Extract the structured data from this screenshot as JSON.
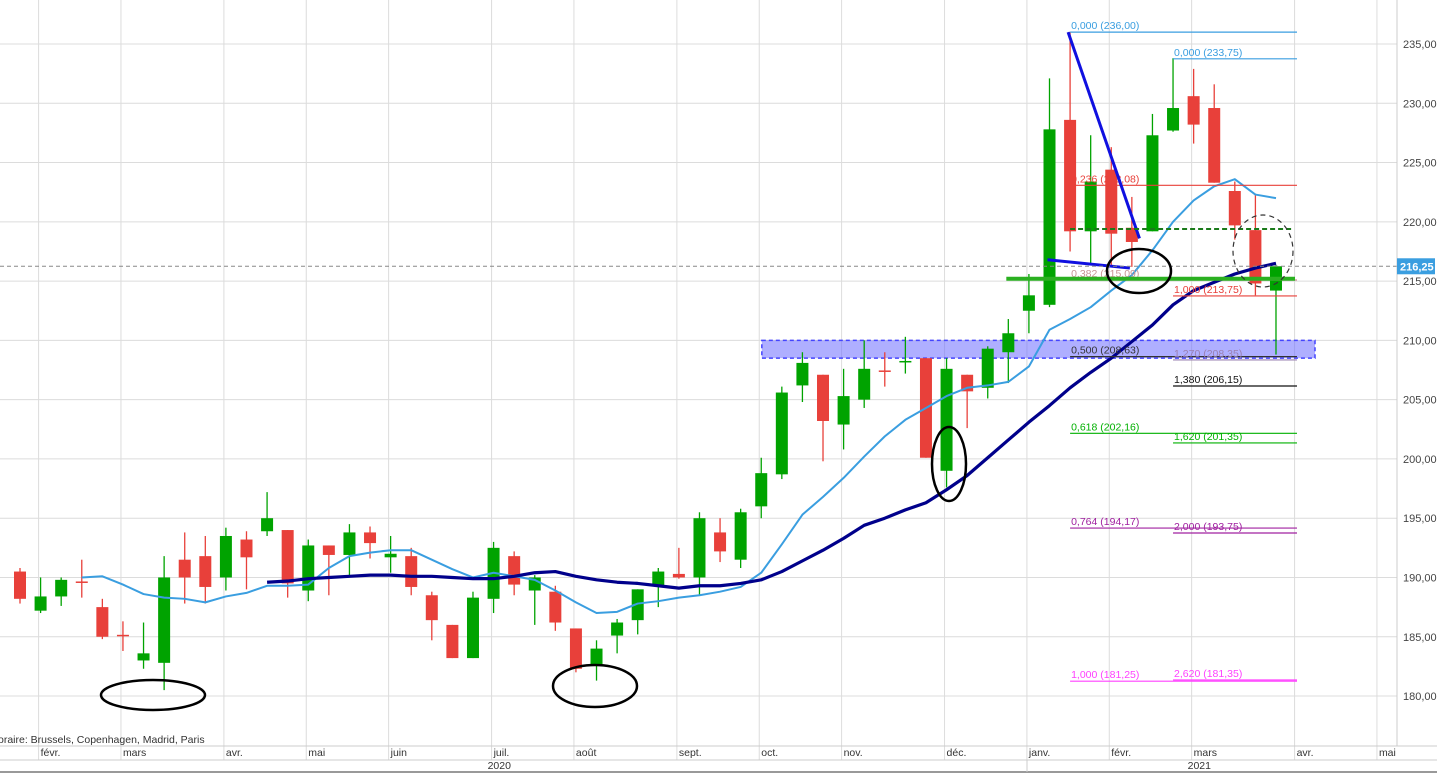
{
  "chart_data": {
    "type": "candlestick",
    "interval": "weekly",
    "ylim": [
      175,
      238
    ],
    "price_axis_ticks": [
      "235,00",
      "230,00",
      "225,00",
      "220,00",
      "215,00",
      "210,00",
      "205,00",
      "200,00",
      "195,00",
      "190,00",
      "185,00",
      "180,00"
    ],
    "price_axis_values": [
      235,
      230,
      225,
      220,
      215,
      210,
      205,
      200,
      195,
      190,
      185,
      180
    ],
    "grid": true,
    "first_week": "2020-01-27",
    "candles": [
      [
        190.5,
        190.8,
        187.8,
        188.2
      ],
      [
        187.2,
        190.0,
        187.0,
        188.4
      ],
      [
        188.4,
        190.0,
        187.6,
        189.8
      ],
      [
        189.6,
        191.5,
        188.3,
        189.4
      ],
      [
        187.5,
        188.2,
        184.8,
        185.0
      ],
      [
        185.1,
        186.3,
        183.8,
        184.9
      ],
      [
        183.0,
        186.2,
        182.3,
        183.6
      ],
      [
        182.8,
        191.8,
        180.5,
        190.0
      ],
      [
        191.5,
        193.8,
        187.8,
        190.0
      ],
      [
        191.8,
        193.5,
        187.8,
        189.2
      ],
      [
        190.0,
        194.2,
        188.9,
        193.5
      ],
      [
        193.2,
        193.9,
        189.0,
        191.7
      ],
      [
        193.9,
        197.2,
        193.5,
        195.0
      ],
      [
        194.0,
        194.0,
        188.3,
        189.5
      ],
      [
        188.9,
        193.2,
        188.0,
        192.7
      ],
      [
        192.7,
        192.7,
        188.5,
        191.9
      ],
      [
        191.9,
        194.5,
        190.0,
        193.8
      ],
      [
        193.8,
        194.3,
        191.6,
        192.9
      ],
      [
        191.7,
        193.5,
        190.4,
        192.0
      ],
      [
        191.8,
        192.5,
        188.5,
        189.2
      ],
      [
        188.5,
        188.8,
        184.7,
        186.4
      ],
      [
        186.0,
        186.0,
        183.2,
        183.2
      ],
      [
        183.2,
        188.8,
        183.2,
        188.3
      ],
      [
        188.2,
        193.0,
        187.0,
        192.5
      ],
      [
        191.8,
        192.2,
        188.5,
        189.4
      ],
      [
        188.9,
        190.2,
        186.0,
        190.0
      ],
      [
        188.8,
        189.3,
        185.5,
        186.2
      ],
      [
        185.7,
        185.7,
        182.0,
        182.3
      ],
      [
        182.6,
        184.7,
        181.3,
        184.0
      ],
      [
        185.1,
        186.5,
        183.6,
        186.2
      ],
      [
        186.4,
        189.0,
        185.2,
        189.0
      ],
      [
        189.3,
        190.8,
        187.5,
        190.5
      ],
      [
        190.3,
        192.5,
        189.9,
        190.0
      ],
      [
        190.0,
        195.5,
        188.5,
        195.0
      ],
      [
        193.8,
        195.0,
        191.3,
        192.2
      ],
      [
        191.5,
        195.8,
        190.8,
        195.5
      ],
      [
        196.0,
        200.1,
        195.0,
        198.8
      ],
      [
        198.7,
        206.1,
        198.3,
        205.6
      ],
      [
        206.2,
        209.0,
        204.8,
        208.1
      ],
      [
        207.1,
        207.1,
        199.8,
        203.2
      ],
      [
        202.9,
        207.6,
        200.8,
        205.3
      ],
      [
        205.0,
        210.0,
        204.3,
        207.6
      ],
      [
        207.4,
        209.0,
        206.1,
        207.3
      ],
      [
        208.0,
        210.3,
        207.2,
        208.2
      ],
      [
        208.5,
        208.5,
        200.1,
        200.1
      ],
      [
        199.0,
        208.5,
        197.6,
        207.6
      ],
      [
        207.1,
        207.1,
        202.6,
        205.7
      ],
      [
        206.0,
        209.5,
        205.1,
        209.3
      ],
      [
        209.0,
        211.8,
        206.4,
        210.6
      ],
      [
        212.5,
        215.6,
        210.6,
        213.8
      ],
      [
        213.0,
        232.1,
        212.8,
        227.8
      ],
      [
        228.6,
        236.0,
        217.5,
        219.2
      ],
      [
        219.2,
        227.3,
        216.5,
        223.4
      ],
      [
        224.4,
        226.3,
        216.2,
        219.0
      ],
      [
        219.5,
        222.1,
        216.2,
        218.3
      ],
      [
        219.2,
        229.1,
        219.2,
        227.3
      ],
      [
        227.7,
        233.8,
        227.6,
        229.6
      ],
      [
        230.6,
        232.9,
        226.6,
        228.2
      ],
      [
        229.6,
        231.6,
        223.3,
        223.3
      ],
      [
        222.6,
        223.4,
        218.5,
        219.7
      ],
      [
        219.3,
        222.3,
        213.8,
        214.8
      ],
      [
        214.2,
        216.35,
        208.8,
        216.25
      ]
    ],
    "candle_fields": [
      "open",
      "high",
      "low",
      "close"
    ],
    "ma_short": [
      null,
      null,
      null,
      190.0,
      190.1,
      189.4,
      188.6,
      188.3,
      188.2,
      187.9,
      188.4,
      188.7,
      189.3,
      189.3,
      189.4,
      190.8,
      191.8,
      192.1,
      192.3,
      192.3,
      191.5,
      190.7,
      190.0,
      190.4,
      190.1,
      189.8,
      188.9,
      187.9,
      187.0,
      187.1,
      187.8,
      188.0,
      188.3,
      188.5,
      188.8,
      189.2,
      190.4,
      192.8,
      195.3,
      196.8,
      198.4,
      200.2,
      201.9,
      203.3,
      204.3,
      205.3,
      206.0,
      206.2,
      206.5,
      207.8,
      210.9,
      211.8,
      212.8,
      214.2,
      215.5,
      217.6,
      220.0,
      221.8,
      223.0,
      223.6,
      222.3,
      222.0
    ],
    "ma_long": [
      null,
      null,
      null,
      null,
      null,
      null,
      null,
      null,
      null,
      null,
      null,
      null,
      189.6,
      189.7,
      189.9,
      190.0,
      190.1,
      190.2,
      190.2,
      190.1,
      190.1,
      190.0,
      189.9,
      189.9,
      190.1,
      190.4,
      190.5,
      190.1,
      189.8,
      189.6,
      189.5,
      189.3,
      189.1,
      189.3,
      189.3,
      189.5,
      189.8,
      190.5,
      191.4,
      192.3,
      193.3,
      194.4,
      195.0,
      195.7,
      196.3,
      197.4,
      198.6,
      200.1,
      201.6,
      203.1,
      204.5,
      206.0,
      207.3,
      208.5,
      209.9,
      211.3,
      213.0,
      214.2,
      214.9,
      215.6,
      216.1,
      216.5
    ],
    "last_price": 216.25,
    "last_price_label": "216,25",
    "colors": {
      "up": "#00a300",
      "down": "#e8403a",
      "ma_short": "#3a9ee0",
      "ma_long": "#00008b",
      "grid": "#dcdcdc",
      "last_price": "#3a9ee0"
    },
    "fib_retracement": {
      "start": "2021-01-18",
      "levels": [
        {
          "label": "0,000 (236,00)",
          "price": 236.0,
          "color": "#3a9ee0"
        },
        {
          "label": "0,236 (223,08)",
          "price": 223.08,
          "color": "#e8403a"
        },
        {
          "label": "0,382 (215,09)",
          "price": 215.09,
          "color": "#c89494"
        },
        {
          "label": "0,500 (208,63)",
          "price": 208.63,
          "color": "#333333"
        },
        {
          "label": "0,618 (202,16)",
          "price": 202.16,
          "color": "#00b000"
        },
        {
          "label": "0,764 (194,17)",
          "price": 194.17,
          "color": "#a020a0"
        },
        {
          "label": "1,000 (181,25)",
          "price": 181.25,
          "color": "#ff40ff"
        }
      ]
    },
    "fib_extension": {
      "start": "2021-02-22",
      "levels": [
        {
          "label": "0,000 (233,75)",
          "price": 233.75,
          "color": "#3a9ee0"
        },
        {
          "label": "1,000 (213,75)",
          "price": 213.75,
          "color": "#e8403a"
        },
        {
          "label": "1,270 (208,35)",
          "price": 208.35,
          "color": "#9a80b0"
        },
        {
          "label": "1,380 (206,15)",
          "price": 206.15,
          "color": "#111111"
        },
        {
          "label": "1,620 (201,35)",
          "price": 201.35,
          "color": "#00b000"
        },
        {
          "label": "2,000 (193,75)",
          "price": 193.75,
          "color": "#a020a0"
        },
        {
          "label": "2,620 (181,35)",
          "price": 181.35,
          "color": "#ff40ff"
        }
      ]
    },
    "support_zone": [
      208.5,
      210.0
    ],
    "support_line": 215.2,
    "dashed_level": 219.4
  },
  "axis": {
    "timezone_note": "oraire: Brussels, Copenhagen, Madrid, Paris",
    "months": [
      {
        "label": "févr.",
        "date": "2020-02-03"
      },
      {
        "label": "mars",
        "date": "2020-03-02"
      },
      {
        "label": "avr.",
        "date": "2020-04-06"
      },
      {
        "label": "mai",
        "date": "2020-05-04"
      },
      {
        "label": "juin",
        "date": "2020-06-01"
      },
      {
        "label": "juil.",
        "date": "2020-07-06"
      },
      {
        "label": "août",
        "date": "2020-08-03"
      },
      {
        "label": "sept.",
        "date": "2020-09-07"
      },
      {
        "label": "oct.",
        "date": "2020-10-05"
      },
      {
        "label": "nov.",
        "date": "2020-11-02"
      },
      {
        "label": "déc.",
        "date": "2020-12-07"
      },
      {
        "label": "janv.",
        "date": "2021-01-04"
      },
      {
        "label": "févr.",
        "date": "2021-02-01"
      },
      {
        "label": "mars",
        "date": "2021-03-01"
      },
      {
        "label": "avr.",
        "date": "2021-04-05"
      },
      {
        "label": "mai",
        "date": "2021-05-03"
      }
    ],
    "years": [
      {
        "label": "2020",
        "date": "2020-07-06"
      },
      {
        "label": "2021",
        "date": "2021-03-01"
      }
    ]
  }
}
